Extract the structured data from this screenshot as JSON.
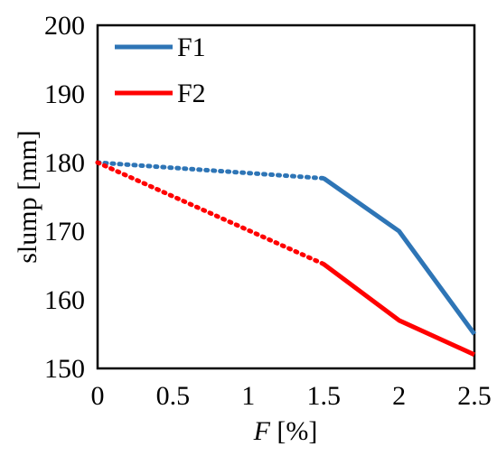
{
  "chart_data": {
    "type": "line",
    "xlabel_italic": "F",
    "xlabel_rest": " [%]",
    "ylabel": "slump [mm]",
    "xlim": [
      0,
      2.5
    ],
    "ylim": [
      150,
      200
    ],
    "xticks": [
      0,
      0.5,
      1,
      1.5,
      2,
      2.5
    ],
    "xtick_labels": [
      "0",
      "0.5",
      "1",
      "1.5",
      "2",
      "2.5"
    ],
    "yticks": [
      150,
      160,
      170,
      180,
      190,
      200
    ],
    "ytick_labels": [
      "150",
      "160",
      "170",
      "180",
      "190",
      "200"
    ],
    "grid": false,
    "legend_position": "top-left",
    "series": [
      {
        "name": "F1",
        "color": "#2e75b6",
        "dotted_points": [
          {
            "x": 0,
            "y": 180
          },
          {
            "x": 1.5,
            "y": 177.7
          }
        ],
        "solid_points": [
          {
            "x": 1.5,
            "y": 177.7
          },
          {
            "x": 2,
            "y": 170
          },
          {
            "x": 2.5,
            "y": 155
          }
        ]
      },
      {
        "name": "F2",
        "color": "#ff0000",
        "dotted_points": [
          {
            "x": 0,
            "y": 180
          },
          {
            "x": 1.5,
            "y": 165.2
          }
        ],
        "solid_points": [
          {
            "x": 1.5,
            "y": 165.2
          },
          {
            "x": 2,
            "y": 157
          },
          {
            "x": 2.5,
            "y": 152
          }
        ]
      }
    ]
  }
}
